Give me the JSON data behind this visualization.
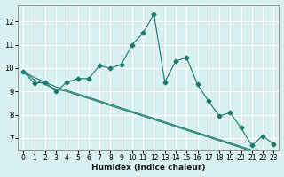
{
  "xlabel": "Humidex (Indice chaleur)",
  "ylabel": "",
  "bg_color": "#d8f0f0",
  "line_color": "#1a7a6e",
  "grid_color": "#ffffff",
  "x_data": [
    0,
    1,
    2,
    3,
    4,
    5,
    6,
    7,
    8,
    9,
    10,
    11,
    12,
    13,
    14,
    15,
    16,
    17,
    18,
    19,
    20,
    21,
    22,
    23
  ],
  "series1": [
    9.85,
    9.35,
    9.4,
    9.0,
    9.4,
    9.55,
    9.55,
    10.1,
    10.0,
    10.15,
    11.0,
    11.5,
    12.3,
    9.4,
    10.3,
    10.45,
    9.3,
    8.6,
    7.95,
    8.1,
    7.45,
    6.7,
    7.1,
    6.75
  ],
  "trend1": [
    9.85,
    9.5,
    9.3,
    9.1,
    9.0,
    8.85,
    8.7,
    8.55,
    8.4,
    8.25,
    8.1,
    7.95,
    7.8,
    7.65,
    7.5,
    7.35,
    7.2,
    7.05,
    6.9,
    6.75,
    6.6,
    6.45,
    6.3,
    6.15
  ],
  "trend2": [
    9.85,
    9.6,
    9.4,
    9.2,
    9.05,
    8.9,
    8.75,
    8.6,
    8.45,
    8.3,
    8.15,
    8.0,
    7.85,
    7.7,
    7.55,
    7.4,
    7.25,
    7.1,
    6.95,
    6.8,
    6.65,
    6.5,
    6.35,
    6.2
  ],
  "ylim": [
    6.5,
    12.7
  ],
  "yticks": [
    7,
    8,
    9,
    10,
    11,
    12
  ],
  "xtick_labels": [
    "0",
    "1",
    "2",
    "3",
    "4",
    "5",
    "6",
    "7",
    "8",
    "9",
    "10",
    "11",
    "12",
    "13",
    "14",
    "15",
    "16",
    "17",
    "18",
    "19",
    "20",
    "21",
    "22",
    "23"
  ]
}
